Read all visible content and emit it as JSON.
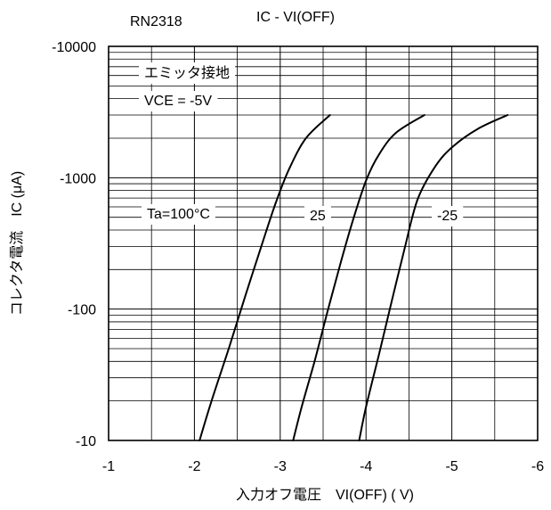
{
  "chart_data": {
    "type": "line",
    "part_number": "RN2318",
    "title": "IC - VI(OFF)",
    "xlabel": "入力オフ電圧　VI(OFF) ( V)",
    "ylabel": "コレクタ電流　IC (μA)",
    "x_scale": "linear",
    "y_scale": "log",
    "xlim": [
      -1,
      -6
    ],
    "ylim": [
      -10,
      -10000
    ],
    "x_ticks": [
      -1,
      -2,
      -3,
      -4,
      -5,
      -6
    ],
    "x_tick_labels": [
      "-1",
      "-2",
      "-3",
      "-4",
      "-5",
      "-6"
    ],
    "y_ticks": [
      -10,
      -100,
      -1000,
      -10000
    ],
    "y_tick_labels": [
      "-10",
      "-100",
      "-1000",
      "-10000"
    ],
    "grid": true,
    "conditions": [
      "エミッタ接地",
      "VCE = -5V"
    ],
    "series": [
      {
        "name": "Ta=100°C",
        "x": [
          -2.06,
          -2.2,
          -2.4,
          -2.6,
          -2.8,
          -2.95,
          -3.1,
          -3.3,
          -3.58
        ],
        "y": [
          -10,
          -20,
          -50,
          -130,
          -330,
          -650,
          -1150,
          -2000,
          -3000
        ]
      },
      {
        "name": "25",
        "x": [
          -3.15,
          -3.25,
          -3.4,
          -3.55,
          -3.7,
          -3.85,
          -4.0,
          -4.15,
          -4.35,
          -4.68
        ],
        "y": [
          -10,
          -18,
          -40,
          -95,
          -220,
          -480,
          -950,
          -1500,
          -2200,
          -3000
        ]
      },
      {
        "name": "-25",
        "x": [
          -3.92,
          -4.0,
          -4.15,
          -4.3,
          -4.45,
          -4.6,
          -4.8,
          -5.0,
          -5.3,
          -5.65
        ],
        "y": [
          -10,
          -18,
          -45,
          -115,
          -290,
          -680,
          -1200,
          -1700,
          -2350,
          -3000
        ]
      }
    ]
  }
}
